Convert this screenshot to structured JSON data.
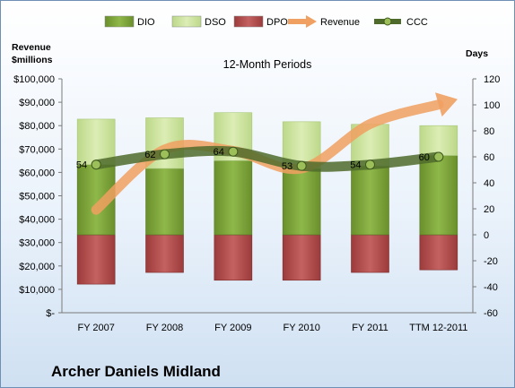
{
  "company": "Archer Daniels Midland",
  "chart_data": {
    "type": "bar",
    "title": "12-Month Periods",
    "categories": [
      "FY 2007",
      "FY 2008",
      "FY 2009",
      "FY 2010",
      "FY 2011",
      "TTM 12-2011"
    ],
    "left_axis": {
      "label_line1": "Revenue",
      "label_line2": "$millions",
      "ticks": [
        "$-",
        "$10,000",
        "$20,000",
        "$30,000",
        "$40,000",
        "$50,000",
        "$60,000",
        "$70,000",
        "$80,000",
        "$90,000",
        "$100,000"
      ],
      "ylim": [
        0,
        100000
      ]
    },
    "right_axis": {
      "label": "Days",
      "ticks": [
        "-60",
        "-40",
        "-20",
        "0",
        "20",
        "40",
        "60",
        "80",
        "100",
        "120"
      ],
      "ylim": [
        -60,
        120
      ]
    },
    "series": [
      {
        "name": "DIO",
        "axis": "right",
        "values": [
          54,
          51,
          57,
          51,
          53,
          61
        ],
        "color": "#7ea33a"
      },
      {
        "name": "DSO",
        "axis": "right",
        "values": [
          35,
          39,
          37,
          36,
          32,
          23
        ],
        "color": "#cfe3a0"
      },
      {
        "name": "DPO",
        "axis": "right",
        "values": [
          -38,
          -29,
          -35,
          -35,
          -29,
          -27
        ],
        "color": "#b84f4f"
      },
      {
        "name": "Revenue",
        "axis": "left",
        "values": [
          44000,
          69800,
          69200,
          61700,
          80700,
          89000
        ],
        "color": "#f0a060"
      },
      {
        "name": "CCC",
        "axis": "right",
        "values": [
          54,
          62,
          64,
          53,
          54,
          60
        ],
        "labels": [
          "54",
          "62",
          "64",
          "53",
          "54",
          "60"
        ],
        "color": "#4f6b2c"
      }
    ],
    "legend": [
      "DIO",
      "DSO",
      "DPO",
      "Revenue",
      "CCC"
    ],
    "legend_position": "top",
    "grid": false
  }
}
